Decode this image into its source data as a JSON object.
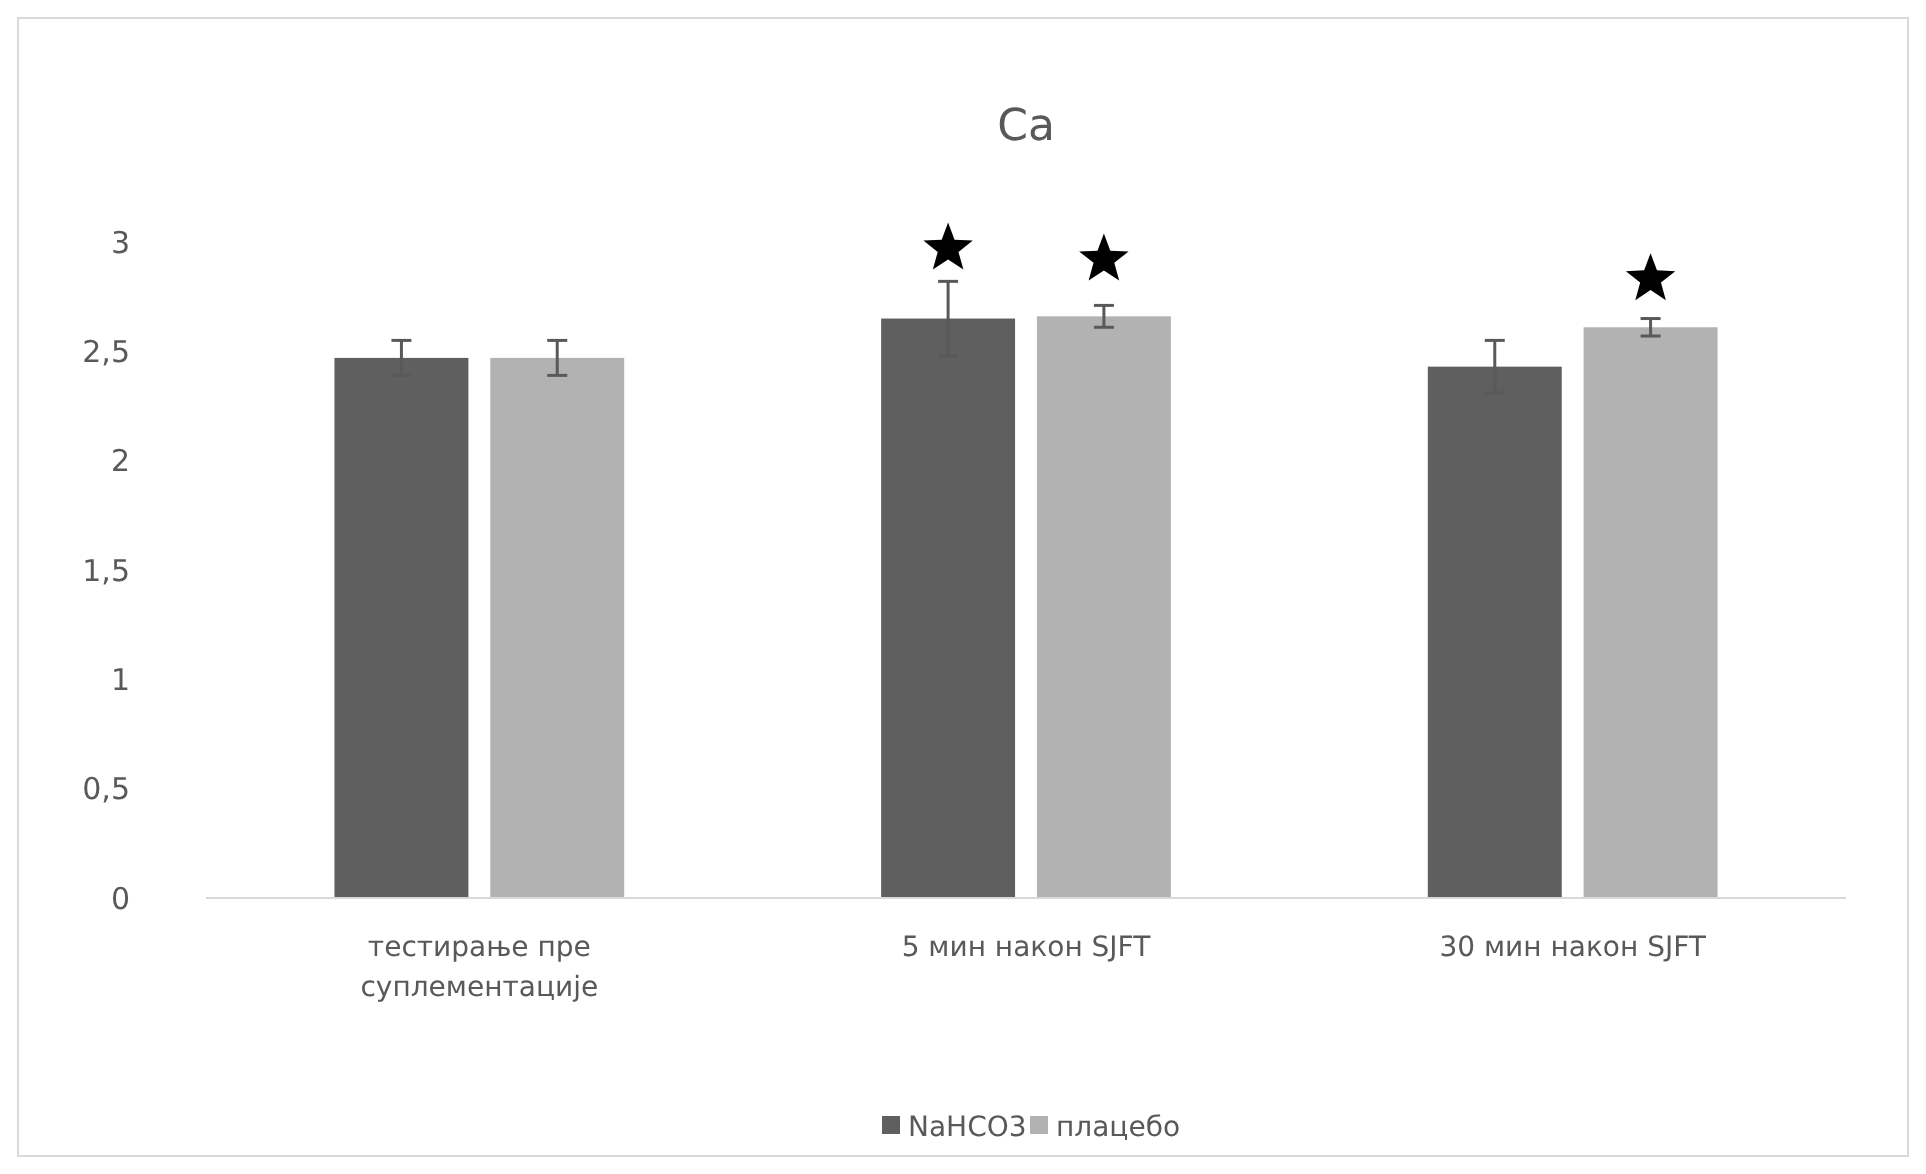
{
  "chart_data": {
    "type": "bar",
    "title": "Ca",
    "categories": [
      "тестирање пре суплементације",
      "5 мин након SJFT",
      "30 мин након SJFT"
    ],
    "series": [
      {
        "name": "NaHCO3",
        "color": "#5f5f5f",
        "values": [
          2.47,
          2.65,
          2.43
        ],
        "errors": [
          0.08,
          0.17,
          0.12
        ]
      },
      {
        "name": "плацебо",
        "color": "#b2b2b2",
        "values": [
          2.47,
          2.66,
          2.61
        ],
        "errors": [
          0.08,
          0.05,
          0.04
        ]
      },
      {
        "type": "scatter",
        "marker": "star",
        "color": "#000000",
        "x": [
          "5 мин након SJFT",
          "5 мин након SJFT",
          "30 мин након SJFT"
        ],
        "values": [
          2.97,
          2.92,
          2.83
        ]
      }
    ],
    "ylim": [
      0,
      3
    ],
    "yticks": [
      {
        "value": 0,
        "label": "0"
      },
      {
        "value": 0.5,
        "label": "0,5"
      },
      {
        "value": 1,
        "label": "1"
      },
      {
        "value": 1.5,
        "label": "1,5"
      },
      {
        "value": 2,
        "label": "2"
      },
      {
        "value": 2.5,
        "label": "2,5"
      },
      {
        "value": 3,
        "label": "3"
      }
    ],
    "legend": "bottom"
  }
}
